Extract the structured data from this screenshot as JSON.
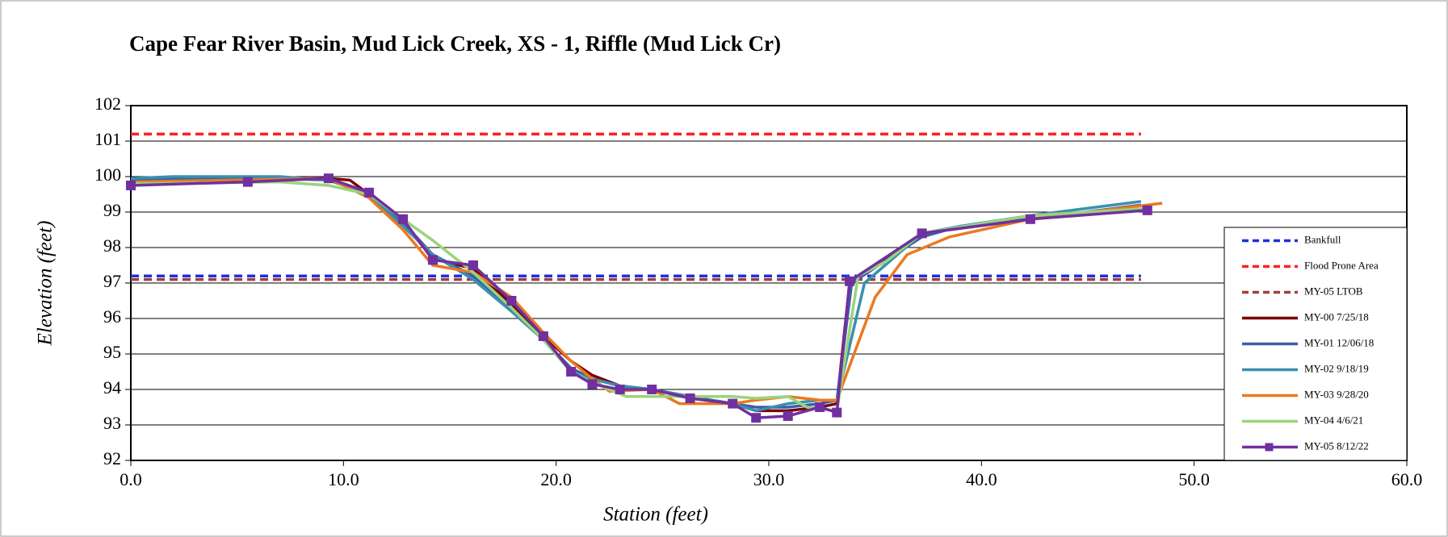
{
  "chart_data": {
    "type": "line",
    "title": "Cape Fear River Basin, Mud Lick Creek, XS - 1, Riffle (Mud Lick Cr)",
    "x_label": "Station (feet)",
    "y_label": "Elevation (feet)",
    "xlim": [
      0,
      60
    ],
    "ylim": [
      92,
      102
    ],
    "xticks": [
      {
        "value": 0,
        "label": "0.0"
      },
      {
        "value": 10,
        "label": "10.0"
      },
      {
        "value": 20,
        "label": "20.0"
      },
      {
        "value": 30,
        "label": "30.0"
      },
      {
        "value": 40,
        "label": "40.0"
      },
      {
        "value": 50,
        "label": "50.0"
      },
      {
        "value": 60,
        "label": "60.0"
      }
    ],
    "yticks": [
      92,
      93,
      94,
      95,
      96,
      97,
      98,
      99,
      100,
      101,
      102
    ],
    "grid": true,
    "legend": "right",
    "series": [
      {
        "name": "Bankfull",
        "color": "#1f2fe0",
        "dashed": true,
        "x": [
          0,
          47.5
        ],
        "values": [
          97.2,
          97.2
        ]
      },
      {
        "name": "Flood Prone Area",
        "color": "#ff2020",
        "dashed": true,
        "x": [
          0,
          47.5
        ],
        "values": [
          101.2,
          101.2
        ]
      },
      {
        "name": "MY-05 LTOB",
        "color": "#a0403a",
        "dashed": true,
        "x": [
          0,
          47.5
        ],
        "values": [
          97.1,
          97.1
        ]
      },
      {
        "name": "MY-00 7/25/18",
        "color": "#7b0000",
        "x": [
          0,
          5.5,
          9.3,
          10.3,
          11.2,
          12.8,
          14.2,
          16.1,
          17.9,
          19.4,
          20.7,
          21.7,
          23.0,
          24.5,
          26.3,
          28.3,
          29.4,
          30.9,
          32.4,
          33.2,
          33.8,
          37.2,
          42.3,
          47.8
        ],
        "values": [
          99.8,
          99.9,
          99.95,
          99.9,
          99.5,
          98.7,
          97.7,
          97.4,
          96.4,
          95.5,
          94.8,
          94.4,
          94.1,
          94.0,
          93.8,
          93.6,
          93.4,
          93.4,
          93.5,
          93.6,
          97.0,
          98.4,
          98.8,
          99.1
        ]
      },
      {
        "name": "MY-01 12/06/18",
        "color": "#3c5fa8",
        "x": [
          0,
          2,
          7,
          9.3,
          11.2,
          12.8,
          14.2,
          16.1,
          17.9,
          19.4,
          20.7,
          21.7,
          23.0,
          24.5,
          26.3,
          28.3,
          29.4,
          30.9,
          32.4,
          33.2,
          33.9,
          37.2,
          39,
          42.3,
          47.5
        ],
        "values": [
          99.9,
          99.95,
          99.95,
          99.9,
          99.5,
          98.7,
          97.8,
          97.2,
          96.3,
          95.4,
          94.6,
          94.3,
          94.1,
          94.0,
          93.8,
          93.6,
          93.5,
          93.5,
          93.6,
          93.7,
          97.0,
          98.3,
          98.6,
          98.8,
          99.2
        ]
      },
      {
        "name": "MY-02 9/18/19",
        "color": "#3a8fb0",
        "x": [
          0,
          2,
          7,
          9.3,
          11.2,
          12.8,
          14.2,
          16.1,
          17.9,
          19.4,
          20.7,
          21.7,
          23.0,
          24.5,
          26.3,
          28.3,
          29.4,
          30.9,
          32.4,
          33.2,
          34.5,
          37.2,
          39,
          42.3,
          47.5
        ],
        "values": [
          99.95,
          100,
          100,
          99.9,
          99.5,
          98.6,
          97.8,
          97.1,
          96.2,
          95.4,
          94.5,
          94.3,
          94.1,
          94.0,
          93.8,
          93.6,
          93.4,
          93.6,
          93.7,
          93.7,
          97.0,
          98.4,
          98.6,
          98.9,
          99.3
        ]
      },
      {
        "name": "MY-03 9/28/20",
        "color": "#ea7a1f",
        "x": [
          0,
          9.3,
          11.2,
          12.8,
          14.2,
          16.1,
          17.9,
          19.4,
          20.7,
          21.7,
          22.5,
          24.5,
          25.8,
          28.3,
          29.4,
          30.9,
          32.4,
          33.2,
          35.0,
          36.5,
          38.5,
          42.3,
          48.5
        ],
        "values": [
          99.85,
          99.95,
          99.4,
          98.5,
          97.5,
          97.3,
          96.6,
          95.6,
          94.8,
          94.3,
          93.95,
          94.0,
          93.6,
          93.6,
          93.7,
          93.8,
          93.7,
          93.7,
          96.6,
          97.8,
          98.3,
          98.8,
          99.25
        ]
      },
      {
        "name": "MY-04 4/6/21",
        "color": "#9ad47a",
        "x": [
          0,
          7,
          9.3,
          11.2,
          12.8,
          14.2,
          16.1,
          17.9,
          19.4,
          20.7,
          21.7,
          23.3,
          24.5,
          26.3,
          28.3,
          29.4,
          30.9,
          31.8,
          33.2,
          34.2,
          35.5,
          37.2,
          42.3,
          47.8
        ],
        "values": [
          99.8,
          99.85,
          99.75,
          99.5,
          98.8,
          98.2,
          97.3,
          96.3,
          95.4,
          94.5,
          94.2,
          93.8,
          93.8,
          93.8,
          93.8,
          93.75,
          93.8,
          93.5,
          93.4,
          97.2,
          97.6,
          98.4,
          98.9,
          99.1
        ]
      },
      {
        "name": "MY-05 8/12/22",
        "color": "#7030a0",
        "marker": "square",
        "x": [
          0,
          5.5,
          9.3,
          11.2,
          12.8,
          14.2,
          16.1,
          17.9,
          19.4,
          20.7,
          21.7,
          23.0,
          24.5,
          26.3,
          28.3,
          29.4,
          30.9,
          32.4,
          33.2,
          33.8,
          37.2,
          42.3,
          47.8
        ],
        "values": [
          99.75,
          99.85,
          99.95,
          99.55,
          98.8,
          97.65,
          97.5,
          96.5,
          95.5,
          94.5,
          94.15,
          94.0,
          94.0,
          93.75,
          93.6,
          93.2,
          93.25,
          93.5,
          93.35,
          97.05,
          98.4,
          98.8,
          99.05
        ]
      }
    ]
  }
}
